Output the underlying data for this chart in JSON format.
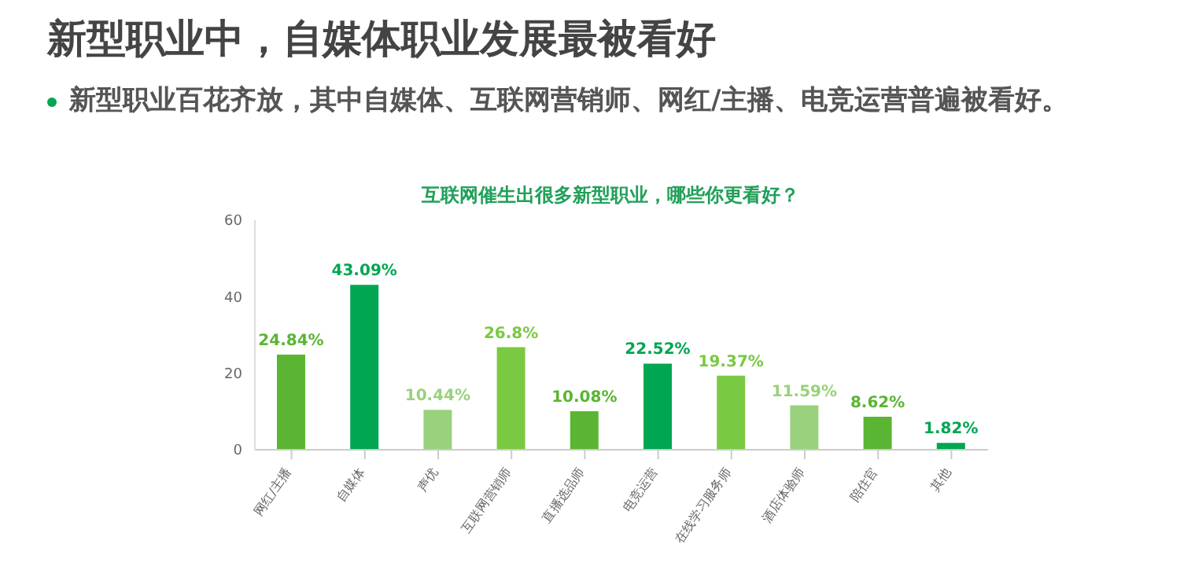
{
  "chart_data": {
    "type": "bar",
    "title": "新型职业中，自媒体职业发展最被看好",
    "subtitle": "新型职业百花齐放，其中自媒体、互联网营销师、网红/主播、电竞运营普遍被看好。",
    "annotations": [
      "互联网催生出很多新型职业，哪些你更看好？"
    ],
    "categories": [
      "网红/主播",
      "自媒体",
      "声优",
      "互联网营销师",
      "直播选品师",
      "电竞运营",
      "在线学习服务师",
      "酒店体验师",
      "陪住官",
      "其他"
    ],
    "values": [
      24.84,
      43.09,
      10.44,
      26.8,
      10.08,
      22.52,
      19.37,
      11.59,
      8.62,
      1.82
    ],
    "value_labels": [
      "24.84%",
      "43.09%",
      "10.44%",
      "26.8%",
      "10.08%",
      "22.52%",
      "19.37%",
      "11.59%",
      "8.62%",
      "1.82%"
    ],
    "colors": [
      "#5ab533",
      "#00a651",
      "#99d17c",
      "#7ac943",
      "#5ab533",
      "#00a651",
      "#7ac943",
      "#99d17c",
      "#5ab533",
      "#00a651"
    ],
    "ylim": [
      0,
      60
    ],
    "yticks": [
      0,
      20,
      40,
      60
    ],
    "grid": false,
    "legend": false
  }
}
